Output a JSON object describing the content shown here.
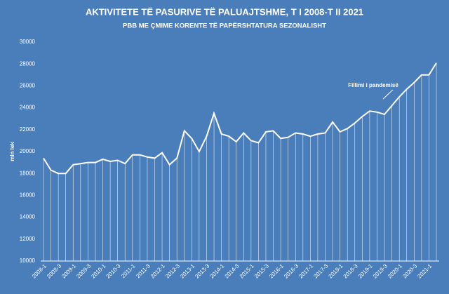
{
  "chart_data": {
    "type": "line",
    "title": "AKTIVITETE TË PASURIVE TË PALUAJTSHME, T I 2008-T II 2021",
    "subtitle": "PBB ME ÇMIME KORENTE TË PAPËRSHTATURA SEZONALISHT",
    "y_label": "mln lek",
    "annotation": "Fillimi i pandemisë",
    "categories": [
      "2008-1",
      null,
      "2008-3",
      null,
      "2009-1",
      null,
      "2009-3",
      null,
      "2010-1",
      null,
      "2010-3",
      null,
      "2011-1",
      null,
      "2011-3",
      null,
      "2012-1",
      null,
      "2012-3",
      null,
      "2013-1",
      null,
      "2013-3",
      null,
      "2014-1",
      null,
      "2014-3",
      null,
      "2015-1",
      null,
      "2015-3",
      null,
      "2016-1",
      null,
      "2016-3",
      null,
      "2017-1",
      null,
      "2017-3",
      null,
      "2018-1",
      null,
      "2018-3",
      null,
      "2019-1",
      null,
      "2019-3",
      null,
      "2020-1",
      null,
      "2020-3",
      null,
      "2021-1",
      null
    ],
    "values": [
      19400,
      18300,
      18000,
      18000,
      18800,
      18900,
      19000,
      19000,
      19300,
      19100,
      19200,
      18900,
      19700,
      19700,
      19500,
      19400,
      19900,
      18800,
      19400,
      21900,
      21200,
      20000,
      21400,
      23500,
      21600,
      21400,
      20900,
      21700,
      21000,
      20800,
      21800,
      21900,
      21200,
      21300,
      21700,
      21600,
      21400,
      21600,
      21700,
      22700,
      21800,
      22100,
      22600,
      23200,
      23700,
      23600,
      23400,
      24200,
      25000,
      25700,
      26300,
      27000,
      27000,
      28100
    ],
    "color": "#ffffff",
    "drop_lines": true,
    "ylim": [
      10000,
      30000
    ],
    "yticks": [
      10000,
      12000,
      14000,
      16000,
      18000,
      20000,
      22000,
      24000,
      26000,
      28000,
      30000
    ],
    "grid": false
  }
}
